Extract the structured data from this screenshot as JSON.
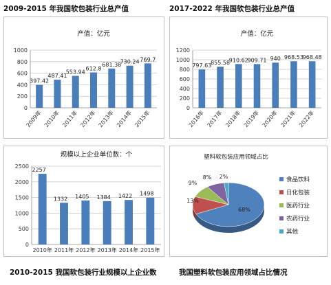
{
  "captions": {
    "c1": "2009-2015 年我国软包装行业总产值",
    "c2": "2017-2022 年我国软包装行业总产值",
    "c3": "2010-2015 我国软包装行业规模以上企业数",
    "c4": "我国塑料软包装应用领域占比情况"
  },
  "colors": {
    "bar": "#4a7ebb",
    "pie": [
      "#4f81bd",
      "#c0504d",
      "#9bbb59",
      "#8064a2",
      "#4bacc6"
    ]
  },
  "chart_data": [
    {
      "type": "bar",
      "title": "产值：亿元",
      "categories": [
        "2009年",
        "2010年",
        "2011年",
        "2012年",
        "2013年",
        "2014年",
        "2015年"
      ],
      "values": [
        397.42,
        487.41,
        553.94,
        612.8,
        681.38,
        730.24,
        769.7
      ],
      "value_labels": [
        "397.42",
        "487.41",
        "553.94",
        "612.8",
        "681.38",
        "730.24",
        "769.7"
      ],
      "yticks": [
        "0",
        "200",
        "400",
        "600",
        "800",
        "1000"
      ],
      "ylim": [
        0,
        1000
      ],
      "grid": true
    },
    {
      "type": "bar",
      "title": "产值：亿元",
      "categories": [
        "2016年",
        "2017年",
        "2018年",
        "2019年",
        "2020年",
        "2021年",
        "2022年"
      ],
      "values": [
        797.63,
        855.58,
        910.62,
        909.71,
        940,
        968.53,
        968.48
      ],
      "value_labels": [
        "797.63",
        "855.58",
        "910.62",
        "909.71",
        "940",
        "968.53",
        "968.48"
      ],
      "yticks": [
        "0",
        "200",
        "400",
        "600",
        "800",
        "1000",
        "1200"
      ],
      "ylim": [
        0,
        1200
      ],
      "grid": true
    },
    {
      "type": "bar",
      "title": "规模以上企业单位数：个",
      "categories": [
        "2010年",
        "2011年",
        "2012年",
        "2013年",
        "2014年",
        "2015年"
      ],
      "values": [
        2257,
        1332,
        1405,
        1384,
        1422,
        1498
      ],
      "value_labels": [
        "2257",
        "1332",
        "1405",
        "1384",
        "1422",
        "1498"
      ],
      "yticks": [
        "0",
        "500",
        "1000",
        "1500",
        "2000",
        "2500"
      ],
      "ylim": [
        0,
        2500
      ],
      "grid": true
    },
    {
      "type": "pie",
      "title": "塑料软包装应用领域占比",
      "labels": [
        "食品饮料",
        "日化包装",
        "医药行业",
        "农药行业",
        "其他"
      ],
      "values": [
        68,
        13,
        9,
        8,
        2
      ],
      "value_labels": [
        "68%",
        "13%",
        "9%",
        "8%",
        "2%"
      ],
      "legend": "right"
    }
  ]
}
